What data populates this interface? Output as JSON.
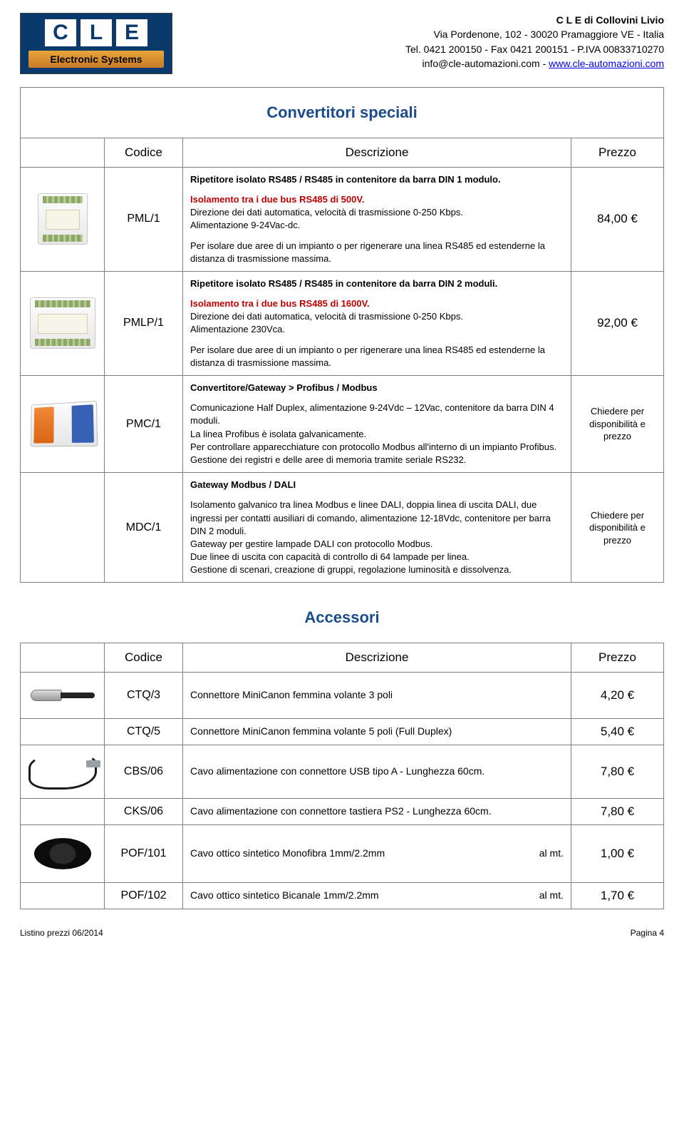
{
  "header": {
    "company_name": "C L E  di Collovini Livio",
    "address": "Via Pordenone, 102 - 30020 Pramaggiore VE - Italia",
    "phone_line": "Tel. 0421 200150 - Fax 0421 200151 - P.IVA 00833710270",
    "email": "info@cle-automazioni.com",
    "sep": " - ",
    "website": "www.cle-automazioni.com",
    "logo_sub": "Electronic Systems",
    "logo_letters": [
      "C",
      "L",
      "E"
    ]
  },
  "colors": {
    "section_title": "#1a4c8c",
    "red": "#c00000",
    "border": "#808080",
    "logo_bg": "#0a3a6b"
  },
  "sections": [
    {
      "title": "Convertitori speciali",
      "header_row": {
        "codice": "Codice",
        "descrizione": "Descrizione",
        "prezzo": "Prezzo"
      }
    },
    {
      "title": "Accessori",
      "header_row": {
        "codice": "Codice",
        "descrizione": "Descrizione",
        "prezzo": "Prezzo"
      }
    }
  ],
  "products": [
    {
      "code": "PML/1",
      "title": "Ripetitore isolato RS485 / RS485 in contenitore da barra DIN 1 modulo.",
      "red1": "Isolamento tra i due bus RS485 di 500V.",
      "body1": "Direzione dei dati automatica, velocità di trasmissione 0-250 Kbps.\nAlimentazione 9-24Vac-dc.",
      "body2": "Per isolare due aree di un impianto o per rigenerare una linea RS485 ed estenderne la distanza di trasmissione massima.",
      "price": "84,00 €"
    },
    {
      "code": "PMLP/1",
      "title": "Ripetitore isolato RS485 / RS485 in contenitore da barra DIN 2 moduli.",
      "red1": "Isolamento tra i due bus RS485 di 1600V.",
      "body1": "Direzione dei dati automatica, velocità di trasmissione 0-250 Kbps.\nAlimentazione 230Vca.",
      "body2": "Per isolare due aree di un impianto o per rigenerare una linea RS485 ed estenderne la distanza di trasmissione massima.",
      "price": "92,00 €"
    },
    {
      "code": "PMC/1",
      "title": "Convertitore/Gateway  >  Profibus / Modbus",
      "body1": "Comunicazione Half Duplex, alimentazione 9-24Vdc – 12Vac, contenitore da barra DIN 4 moduli.\nLa linea Profibus è isolata galvanicamente.\nPer controllare apparecchiature con protocollo Modbus all'interno di un impianto Profibus.\nGestione dei registri e delle aree di memoria tramite seriale RS232.",
      "price": "Chiedere per disponibilità e prezzo"
    },
    {
      "code": "MDC/1",
      "title": "Gateway  Modbus / DALI",
      "body1": "Isolamento galvanico tra linea Modbus e linee DALI, doppia linea di uscita DALI, due ingressi per contatti ausiliari di comando, alimentazione 12-18Vdc, contenitore per barra DIN 2 moduli.\nGateway per gestire lampade DALI con protocollo Modbus.\nDue linee di uscita con capacità di controllo di 64 lampade per linea.\nGestione di scenari, creazione di gruppi, regolazione luminosità e dissolvenza.",
      "price": "Chiedere per disponibilità e prezzo"
    }
  ],
  "accessories": [
    {
      "code": "CTQ/3",
      "desc": "Connettore MiniCanon femmina volante 3 poli",
      "price": "4,20 €"
    },
    {
      "code": "CTQ/5",
      "desc": "Connettore MiniCanon femmina volante 5 poli  (Full Duplex)",
      "price": "5,40 €"
    },
    {
      "code": "CBS/06",
      "desc": "Cavo alimentazione con connettore USB tipo A - Lunghezza 60cm.",
      "price": "7,80 €"
    },
    {
      "code": "CKS/06",
      "desc": "Cavo alimentazione con connettore tastiera PS2 - Lunghezza 60cm.",
      "price": "7,80 €"
    },
    {
      "code": "POF/101",
      "desc": "Cavo ottico sintetico Monofibra  1mm/2.2mm",
      "right": "al mt.",
      "price": "1,00 €"
    },
    {
      "code": "POF/102",
      "desc": "Cavo ottico sintetico  Bicanale  1mm/2.2mm",
      "right": "al mt.",
      "price": "1,70 €"
    }
  ],
  "footer": {
    "left": "Listino prezzi 06/2014",
    "right": "Pagina 4"
  }
}
